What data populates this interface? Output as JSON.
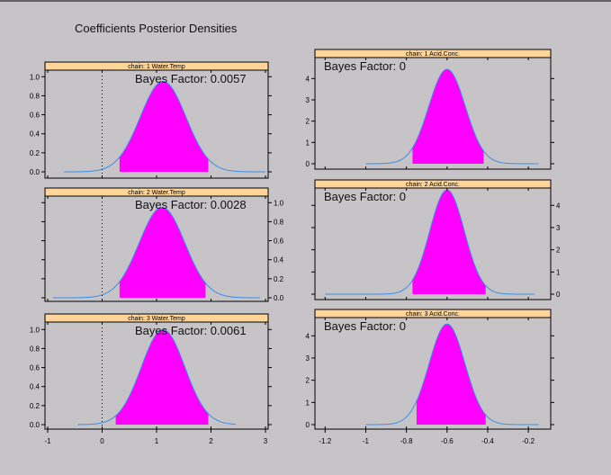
{
  "figure": {
    "title": "Coefficients Posterior Densities"
  },
  "colors": {
    "background": "#c6c4c7",
    "strip": "#ffd59a",
    "fill": "#ff00ff",
    "curve": "#3a8ee6",
    "zero_line": "#000000"
  },
  "chart_data": [
    {
      "type": "area",
      "strip": "chain:  1   Water.Temp",
      "bayes_factor": "Bayes Factor: 0.0057",
      "mean": 1.12,
      "sd": 0.42,
      "xrange": [
        -0.7,
        3.0
      ],
      "fill_range": [
        0.32,
        1.95
      ],
      "x_ticks": [
        -1,
        0,
        1,
        2,
        3
      ],
      "y_ticks": [
        0.0,
        0.2,
        0.4,
        0.6,
        0.8,
        1.0
      ],
      "ylim": [
        0,
        1.05
      ],
      "zero_line": 0
    },
    {
      "type": "area",
      "strip": "chain:  1   Acid.Conc.",
      "bayes_factor": "Bayes Factor: 0",
      "mean": -0.6,
      "sd": 0.09,
      "xrange": [
        -1.0,
        -0.15
      ],
      "fill_range": [
        -0.77,
        -0.42
      ],
      "x_ticks": [
        -1.2,
        -1.0,
        -0.8,
        -0.6,
        -0.4,
        -0.2
      ],
      "y_ticks": [
        0,
        1,
        2,
        3,
        4
      ],
      "ylim": [
        0,
        4.9
      ],
      "zero_line": null
    },
    {
      "type": "area",
      "strip": "chain:  2   Water.Temp",
      "bayes_factor": "Bayes Factor: 0.0028",
      "mean": 1.1,
      "sd": 0.42,
      "xrange": [
        -0.9,
        2.9
      ],
      "fill_range": [
        0.32,
        1.9
      ],
      "x_ticks": [
        -1,
        0,
        1,
        2,
        3
      ],
      "y_ticks": [
        0.0,
        0.2,
        0.4,
        0.6,
        0.8,
        1.0
      ],
      "ylim": [
        0,
        1.05
      ],
      "zero_line": 0
    },
    {
      "type": "area",
      "strip": "chain:  2   Acid.Conc.",
      "bayes_factor": "Bayes Factor: 0",
      "mean": -0.6,
      "sd": 0.085,
      "xrange": [
        -1.2,
        -0.17
      ],
      "fill_range": [
        -0.77,
        -0.41
      ],
      "x_ticks": [
        -1.2,
        -1.0,
        -0.8,
        -0.6,
        -0.4,
        -0.2
      ],
      "y_ticks": [
        0,
        1,
        2,
        3,
        4
      ],
      "ylim": [
        0,
        4.7
      ],
      "zero_line": null
    },
    {
      "type": "area",
      "strip": "chain:  3   Water.Temp",
      "bayes_factor": "Bayes Factor: 0.0061",
      "mean": 1.12,
      "sd": 0.4,
      "xrange": [
        -0.45,
        2.45
      ],
      "fill_range": [
        0.25,
        1.95
      ],
      "x_ticks": [
        -1,
        0,
        1,
        2,
        3
      ],
      "y_ticks": [
        0.0,
        0.2,
        0.4,
        0.6,
        0.8,
        1.0
      ],
      "ylim": [
        0,
        1.05
      ],
      "zero_line": 0
    },
    {
      "type": "area",
      "strip": "chain:  3   Acid.Conc.",
      "bayes_factor": "Bayes Factor: 0",
      "mean": -0.6,
      "sd": 0.088,
      "xrange": [
        -1.0,
        -0.15
      ],
      "fill_range": [
        -0.75,
        -0.41
      ],
      "x_ticks": [
        -1.2,
        -1.0,
        -0.8,
        -0.6,
        -0.4,
        -0.2
      ],
      "y_ticks": [
        0,
        1,
        2,
        3,
        4
      ],
      "ylim": [
        0,
        4.7
      ],
      "zero_line": null
    }
  ]
}
